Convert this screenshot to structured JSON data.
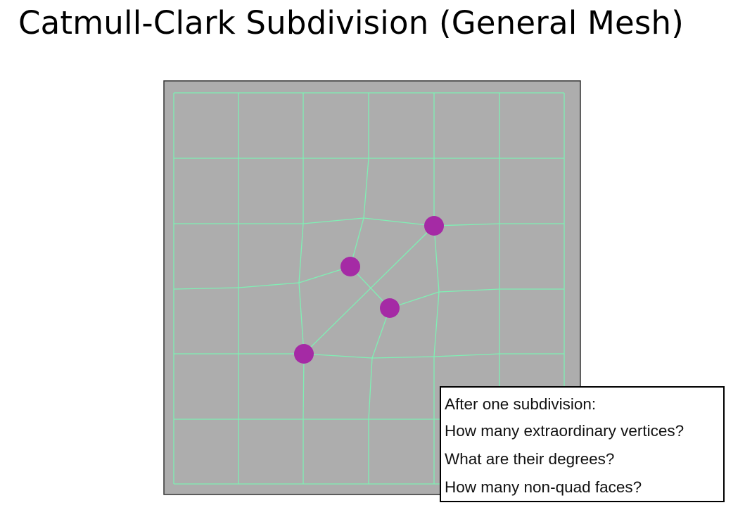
{
  "title": "Catmull-Clark Subdivision (General Mesh)",
  "colors": {
    "background": "#ffffff",
    "mesh_fill": "#adadad",
    "mesh_border": "#333333",
    "edge": "#7ff0b4",
    "extraordinary_vertex": "#a52aa5",
    "text": "#111111"
  },
  "mesh": {
    "description_icon": "quad-mesh-icon",
    "extraordinary_vertex_count": 4
  },
  "question_box": {
    "lines": [
      "After one subdivision:",
      "How many extraordinary vertices?",
      "What are their degrees?",
      "How many non-quad faces?"
    ]
  }
}
